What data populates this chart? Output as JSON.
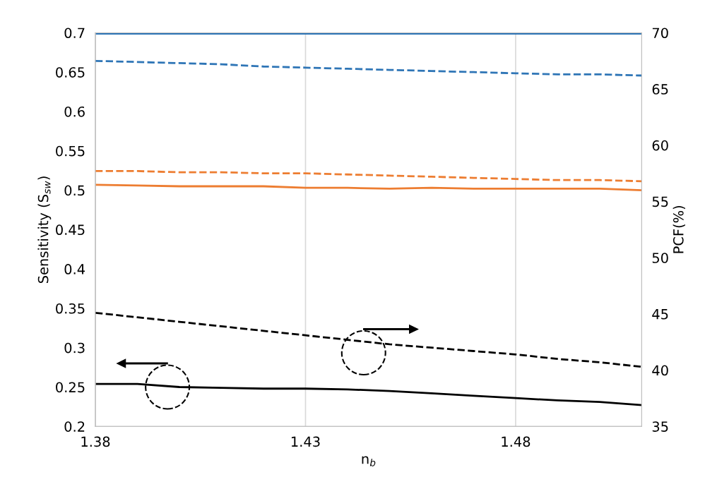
{
  "chart_data": {
    "type": "line",
    "xlabel": "n$_{b}$",
    "ylabel": "Sensitivity (S$_{sw}$)",
    "y2label": "PCF(%)",
    "x": [
      1.38,
      1.39,
      1.4,
      1.41,
      1.42,
      1.43,
      1.44,
      1.45,
      1.46,
      1.47,
      1.48,
      1.49,
      1.5,
      1.51
    ],
    "series": [
      {
        "color": "#2e75b6",
        "line_style": "solid",
        "values": [
          0.699,
          0.699,
          0.699,
          0.699,
          0.699,
          0.699,
          0.699,
          0.699,
          0.699,
          0.699,
          0.699,
          0.699,
          0.699,
          0.699
        ]
      },
      {
        "color": "#ed7d31",
        "line_style": "solid",
        "values": [
          0.507,
          0.506,
          0.505,
          0.505,
          0.505,
          0.503,
          0.503,
          0.502,
          0.503,
          0.502,
          0.502,
          0.502,
          0.502,
          0.5
        ]
      },
      {
        "color": "#000000",
        "line_style": "solid",
        "values": [
          0.254,
          0.254,
          0.25,
          0.249,
          0.248,
          0.248,
          0.247,
          0.245,
          0.242,
          0.239,
          0.236,
          0.233,
          0.231,
          0.227
        ]
      },
      {
        "color": "#2e75b6",
        "line_style": "dashed",
        "axis": "y2",
        "values": [
          67.5,
          67.4,
          67.3,
          67.2,
          67.0,
          66.9,
          66.8,
          66.7,
          66.6,
          66.5,
          66.4,
          66.3,
          66.3,
          66.2
        ]
      },
      {
        "color": "#ed7d31",
        "line_style": "dashed",
        "axis": "y2",
        "values": [
          57.7,
          57.7,
          57.6,
          57.6,
          57.5,
          57.5,
          57.4,
          57.3,
          57.2,
          57.1,
          57.0,
          56.9,
          56.9,
          56.8
        ]
      },
      {
        "color": "#000000",
        "line_style": "dashed",
        "axis": "y2",
        "values": [
          45.1,
          44.7,
          44.3,
          43.9,
          43.5,
          43.1,
          42.7,
          42.3,
          42.0,
          41.7,
          41.4,
          41.0,
          40.7,
          40.3
        ]
      }
    ],
    "xlim": [
      1.38,
      1.51
    ],
    "xticks": [
      1.38,
      1.43,
      1.48
    ],
    "ylim": [
      0.2,
      0.7
    ],
    "yticks": [
      0.2,
      0.25,
      0.3,
      0.35,
      0.4,
      0.45,
      0.5,
      0.55,
      0.6,
      0.65,
      0.7
    ],
    "y2lim": [
      35,
      70
    ],
    "y2ticks": [
      35,
      40,
      45,
      50,
      55,
      60,
      65,
      70
    ],
    "grid": "x"
  }
}
